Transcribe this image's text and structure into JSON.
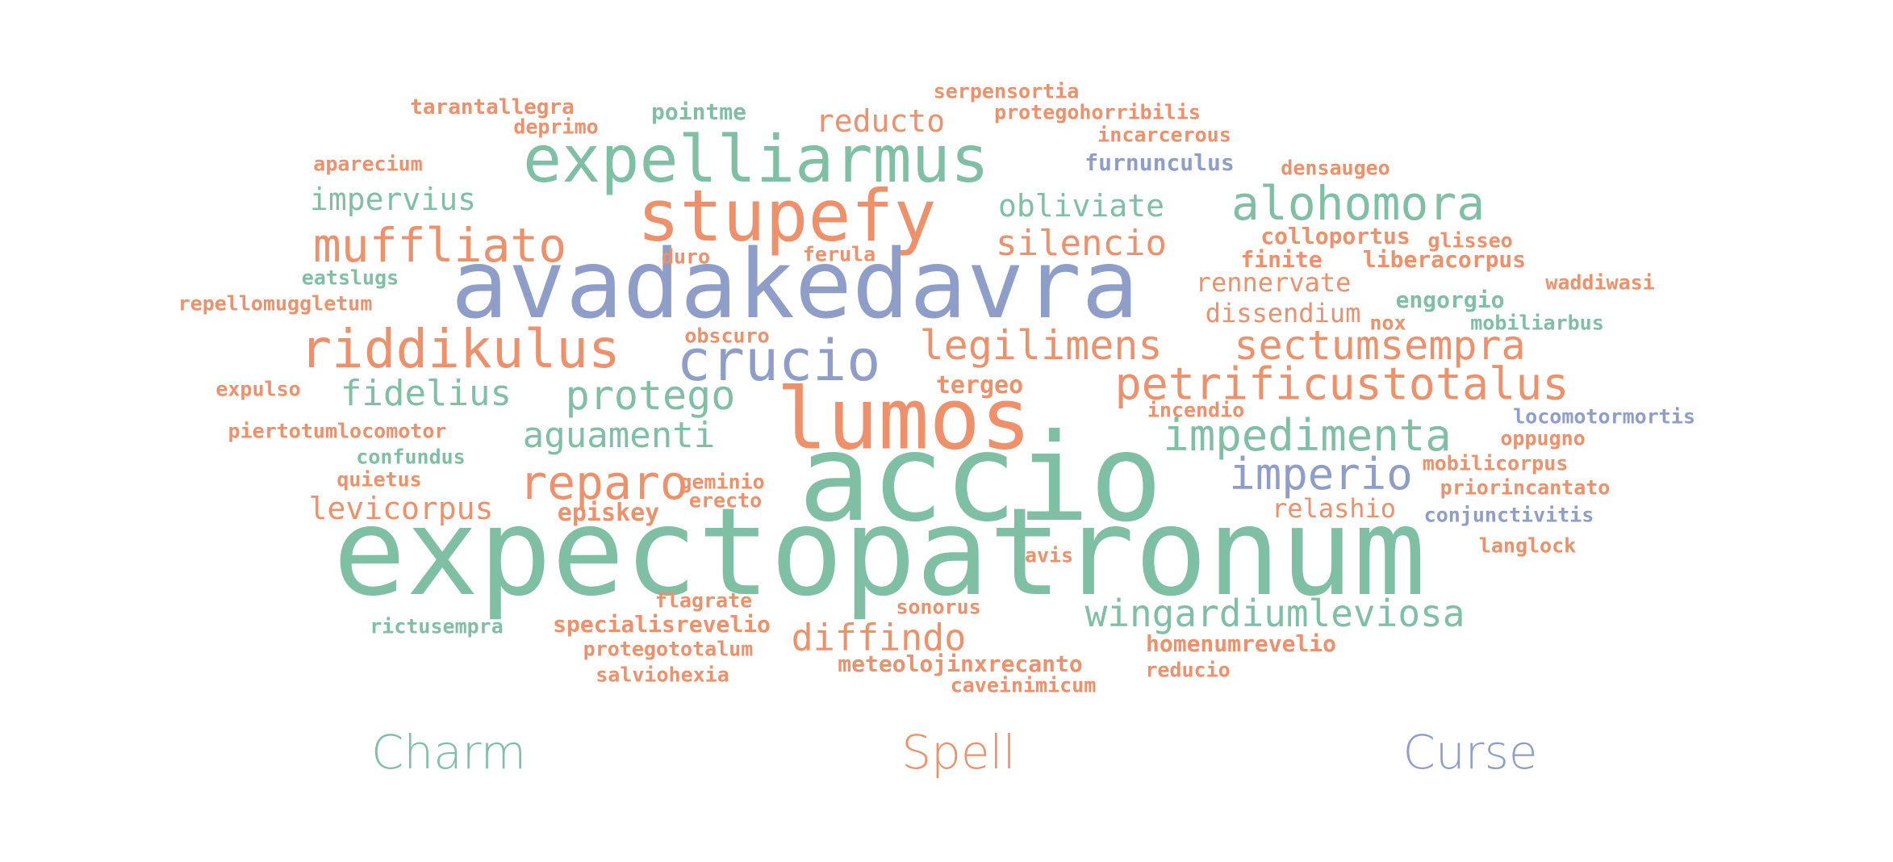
{
  "colors": {
    "Charm": "#7fbfa3",
    "Spell": "#ee9069",
    "Curse": "#8f9ec8"
  },
  "chart_data": {
    "type": "wordcloud",
    "legend": [
      "Charm",
      "Spell",
      "Curse"
    ],
    "words": [
      {
        "text": "expectopatronum",
        "category": "Charm"
      },
      {
        "text": "accio",
        "category": "Charm"
      },
      {
        "text": "lumos",
        "category": "Spell"
      },
      {
        "text": "avadakedavra",
        "category": "Curse"
      },
      {
        "text": "stupefy",
        "category": "Spell"
      },
      {
        "text": "expelliarmus",
        "category": "Charm"
      },
      {
        "text": "riddikulus",
        "category": "Spell"
      },
      {
        "text": "crucio",
        "category": "Curse"
      },
      {
        "text": "alohomora",
        "category": "Charm"
      },
      {
        "text": "muffliato",
        "category": "Spell"
      },
      {
        "text": "petrificustotalus",
        "category": "Spell"
      },
      {
        "text": "impedimenta",
        "category": "Charm"
      },
      {
        "text": "wingardiumleviosa",
        "category": "Charm"
      },
      {
        "text": "sectumsempra",
        "category": "Spell"
      },
      {
        "text": "legilimens",
        "category": "Spell"
      },
      {
        "text": "reparo",
        "category": "Spell"
      },
      {
        "text": "imperio",
        "category": "Curse"
      },
      {
        "text": "protego",
        "category": "Charm"
      },
      {
        "text": "fidelius",
        "category": "Charm"
      },
      {
        "text": "aguamenti",
        "category": "Charm"
      },
      {
        "text": "diffindo",
        "category": "Spell"
      },
      {
        "text": "silencio",
        "category": "Spell"
      },
      {
        "text": "obliviate",
        "category": "Charm"
      },
      {
        "text": "impervius",
        "category": "Charm"
      },
      {
        "text": "levicorpus",
        "category": "Spell"
      },
      {
        "text": "reducto",
        "category": "Spell"
      },
      {
        "text": "rennervate",
        "category": "Spell"
      },
      {
        "text": "dissendium",
        "category": "Spell"
      },
      {
        "text": "relashio",
        "category": "Spell"
      },
      {
        "text": "specialisrevelio",
        "category": "Spell"
      },
      {
        "text": "homenumrevelio",
        "category": "Spell"
      },
      {
        "text": "meteolojinxrecanto",
        "category": "Spell"
      },
      {
        "text": "episkey",
        "category": "Spell"
      },
      {
        "text": "tergeo",
        "category": "Spell"
      },
      {
        "text": "colloportus",
        "category": "Spell"
      },
      {
        "text": "finite",
        "category": "Spell"
      },
      {
        "text": "liberacorpus",
        "category": "Spell"
      },
      {
        "text": "engorgio",
        "category": "Charm"
      },
      {
        "text": "pointme",
        "category": "Charm"
      },
      {
        "text": "furnunculus",
        "category": "Curse"
      },
      {
        "text": "tarantallegra",
        "category": "Spell"
      },
      {
        "text": "serpensortia",
        "category": "Spell"
      },
      {
        "text": "protegohorribilis",
        "category": "Spell"
      },
      {
        "text": "deprimo",
        "category": "Spell"
      },
      {
        "text": "incarcerous",
        "category": "Spell"
      },
      {
        "text": "aparecium",
        "category": "Spell"
      },
      {
        "text": "densaugeo",
        "category": "Spell"
      },
      {
        "text": "glisseo",
        "category": "Spell"
      },
      {
        "text": "duro",
        "category": "Spell"
      },
      {
        "text": "ferula",
        "category": "Spell"
      },
      {
        "text": "eatslugs",
        "category": "Charm"
      },
      {
        "text": "waddiwasi",
        "category": "Spell"
      },
      {
        "text": "repellomuggletum",
        "category": "Spell"
      },
      {
        "text": "obscuro",
        "category": "Spell"
      },
      {
        "text": "nox",
        "category": "Spell"
      },
      {
        "text": "mobiliarbus",
        "category": "Charm"
      },
      {
        "text": "expulso",
        "category": "Spell"
      },
      {
        "text": "incendio",
        "category": "Spell"
      },
      {
        "text": "locomotormortis",
        "category": "Curse"
      },
      {
        "text": "piertotumlocomotor",
        "category": "Spell"
      },
      {
        "text": "oppugno",
        "category": "Spell"
      },
      {
        "text": "confundus",
        "category": "Charm"
      },
      {
        "text": "mobilicorpus",
        "category": "Spell"
      },
      {
        "text": "quietus",
        "category": "Spell"
      },
      {
        "text": "geminio",
        "category": "Spell"
      },
      {
        "text": "priorincantato",
        "category": "Spell"
      },
      {
        "text": "erecto",
        "category": "Spell"
      },
      {
        "text": "conjunctivitis",
        "category": "Curse"
      },
      {
        "text": "langlock",
        "category": "Spell"
      },
      {
        "text": "avis",
        "category": "Spell"
      },
      {
        "text": "flagrate",
        "category": "Spell"
      },
      {
        "text": "sonorus",
        "category": "Spell"
      },
      {
        "text": "rictusempra",
        "category": "Charm"
      },
      {
        "text": "protegototalum",
        "category": "Spell"
      },
      {
        "text": "reducio",
        "category": "Spell"
      },
      {
        "text": "salviohexia",
        "category": "Spell"
      },
      {
        "text": "caveinimicum",
        "category": "Spell"
      }
    ]
  }
}
